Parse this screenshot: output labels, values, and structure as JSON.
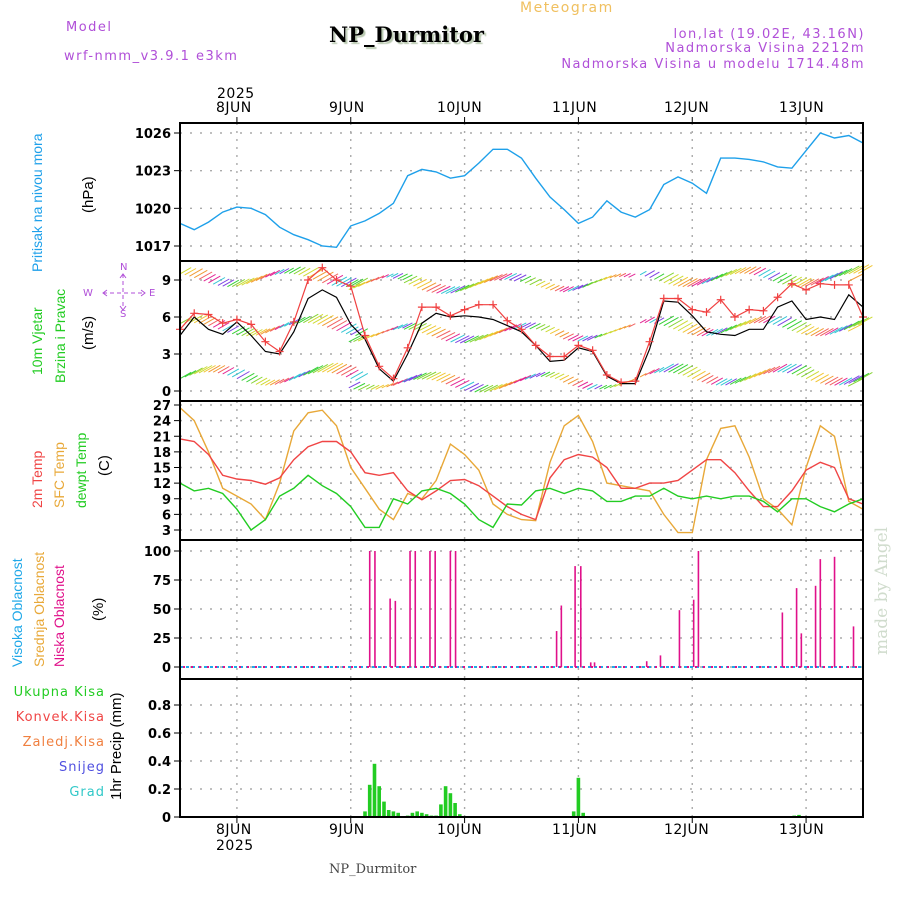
{
  "header": {
    "model_label": "Model",
    "model_name": "wrf-nmm_v3.9.1 e3km",
    "title": "NP_Durmitor",
    "subtitle": "Meteogram",
    "coords": "lon,lat (19.02E, 43.16N)",
    "elevation": "Nadmorska Visina 2212m",
    "model_elevation": "Nadmorska Visina u modelu 1714.48m"
  },
  "footer": {
    "station": "NP_Durmitor",
    "credit": "made by Angel"
  },
  "time_axis": {
    "start": "2025-06-07T12:00",
    "end": "2025-06-13T12:00",
    "year_label": "2025",
    "day_labels": [
      "8JUN",
      "9JUN",
      "10JUN",
      "11JUN",
      "12JUN",
      "13JUN"
    ]
  },
  "colors": {
    "pressure": "#1ea0ea",
    "wind_speed": "#000000",
    "gust": "#f04040",
    "temp2m": "#f04545",
    "sfc_temp": "#e8a838",
    "dewpt": "#22cc22",
    "cloud_high": "#20a8e8",
    "cloud_mid": "#e8a838",
    "cloud_low": "#e0108a",
    "precip_total": "#22cc22",
    "precip_conv": "#f04545",
    "precip_frz": "#f08040",
    "snow": "#5050e0",
    "hail": "#30c8c8",
    "label_purple": "#b04fd8"
  },
  "chart_data": [
    {
      "type": "line",
      "panel": "pressure",
      "ylabel_lines": [
        "Pritisak na nivou mora",
        "(hPa)"
      ],
      "ylim": [
        1016,
        1027
      ],
      "yticks": [
        1017,
        1020,
        1023,
        1026
      ],
      "grid": true,
      "series": [
        {
          "name": "Sea level pressure",
          "x_hours": [
            0,
            3,
            6,
            9,
            12,
            15,
            18,
            21,
            24,
            27,
            30,
            33,
            36,
            39,
            42,
            45,
            48,
            51,
            54,
            57,
            60,
            63,
            66,
            69,
            72,
            75,
            78,
            81,
            84,
            87,
            90,
            93,
            96,
            99,
            102,
            105,
            108,
            111,
            114,
            117,
            120,
            123,
            126,
            129,
            132,
            135,
            138,
            141,
            144
          ],
          "values": [
            1018.8,
            1018.3,
            1018.9,
            1019.7,
            1020.1,
            1020.0,
            1019.5,
            1018.5,
            1017.9,
            1017.5,
            1017.0,
            1016.9,
            1018.6,
            1019.0,
            1019.6,
            1020.4,
            1022.6,
            1023.1,
            1022.9,
            1022.4,
            1022.6,
            1023.6,
            1024.7,
            1024.7,
            1024.0,
            1022.4,
            1020.9,
            1019.9,
            1018.8,
            1019.3,
            1020.6,
            1019.7,
            1019.3,
            1019.9,
            1021.9,
            1022.5,
            1022.0,
            1021.2,
            1024.0,
            1024.0,
            1023.9,
            1023.7,
            1023.3,
            1023.2,
            1024.6,
            1026.0,
            1025.6,
            1025.8,
            1025.2
          ]
        }
      ]
    },
    {
      "type": "line",
      "panel": "wind",
      "ylabel_lines": [
        "10m Vjetar",
        "Brzina i Pravac",
        "(m/s)"
      ],
      "compass": {
        "n": "N",
        "s": "S",
        "e": "E",
        "w": "W"
      },
      "ylim": [
        -0.5,
        10.5
      ],
      "yticks": [
        0,
        3,
        6,
        9
      ],
      "grid": true,
      "series": [
        {
          "name": "Wind speed",
          "x_hours": [
            0,
            3,
            6,
            9,
            12,
            15,
            18,
            21,
            24,
            27,
            30,
            33,
            36,
            39,
            42,
            45,
            48,
            51,
            54,
            57,
            60,
            63,
            66,
            69,
            72,
            75,
            78,
            81,
            84,
            87,
            90,
            93,
            96,
            99,
            102,
            105,
            108,
            111,
            114,
            117,
            120,
            123,
            126,
            129,
            132,
            135,
            138,
            141,
            144
          ],
          "values": [
            4.5,
            6.0,
            5.0,
            4.6,
            5.6,
            4.5,
            3.2,
            3.0,
            4.8,
            7.5,
            8.2,
            7.6,
            5.4,
            4.2,
            1.8,
            0.8,
            3.0,
            5.5,
            6.3,
            6.0,
            6.1,
            6.0,
            5.8,
            5.3,
            4.8,
            3.7,
            2.4,
            2.5,
            3.5,
            3.2,
            1.2,
            0.6,
            0.6,
            3.4,
            7.3,
            7.2,
            6.1,
            4.8,
            4.6,
            4.5,
            5.0,
            5.0,
            6.8,
            7.3,
            5.8,
            6.0,
            5.8,
            7.8,
            6.8
          ]
        },
        {
          "name": "Gust",
          "x_hours": [
            0,
            3,
            6,
            9,
            12,
            15,
            18,
            21,
            24,
            27,
            30,
            33,
            36,
            39,
            42,
            45,
            48,
            51,
            54,
            57,
            60,
            63,
            66,
            69,
            72,
            75,
            78,
            81,
            84,
            87,
            90,
            93,
            96,
            99,
            102,
            105,
            108,
            111,
            114,
            117,
            120,
            123,
            126,
            129,
            132,
            135,
            138,
            141,
            144
          ],
          "values": [
            5.0,
            6.3,
            6.2,
            5.5,
            5.8,
            5.4,
            4.0,
            3.2,
            5.6,
            9.0,
            10.0,
            9.0,
            8.5,
            4.5,
            2.0,
            1.0,
            3.5,
            6.8,
            6.8,
            6.1,
            6.6,
            7.0,
            7.0,
            5.7,
            5.0,
            3.7,
            2.8,
            2.8,
            3.7,
            3.3,
            1.3,
            0.7,
            0.8,
            4.0,
            7.5,
            7.5,
            6.6,
            6.4,
            7.4,
            6.0,
            6.6,
            6.5,
            7.6,
            8.7,
            8.2,
            8.7,
            8.6,
            8.6,
            6.0
          ]
        }
      ],
      "arrow_rows": [
        1,
        5,
        9
      ]
    },
    {
      "type": "line",
      "panel": "temperature",
      "ylabel_lines": [
        "2m Temp",
        "SFC Temp",
        "dewpt Temp",
        "(C)"
      ],
      "ylim": [
        1.5,
        28
      ],
      "yticks": [
        3,
        6,
        9,
        12,
        15,
        18,
        21,
        24,
        27
      ],
      "grid": true,
      "series": [
        {
          "name": "2m Temp",
          "x_hours": [
            0,
            3,
            6,
            9,
            12,
            15,
            18,
            21,
            24,
            27,
            30,
            33,
            36,
            39,
            42,
            45,
            48,
            51,
            54,
            57,
            60,
            63,
            66,
            69,
            72,
            75,
            78,
            81,
            84,
            87,
            90,
            93,
            96,
            99,
            102,
            105,
            108,
            111,
            114,
            117,
            120,
            123,
            126,
            129,
            132,
            135,
            138,
            141,
            144
          ],
          "values": [
            20.5,
            20.0,
            17.5,
            13.5,
            12.8,
            12.5,
            11.8,
            13.0,
            16.5,
            19.0,
            20.0,
            20.0,
            18.0,
            14.0,
            13.5,
            14.0,
            10.5,
            8.8,
            10.5,
            12.5,
            12.7,
            11.5,
            9.5,
            7.5,
            6.0,
            5.0,
            13.0,
            16.5,
            17.5,
            17.0,
            15.0,
            11.0,
            11.0,
            12.0,
            12.0,
            12.5,
            14.5,
            16.5,
            16.5,
            14.0,
            10.5,
            7.5,
            7.5,
            10.5,
            14.5,
            16.0,
            15.0,
            9.0,
            8.0
          ]
        },
        {
          "name": "SFC Temp",
          "x_hours": [
            0,
            3,
            6,
            9,
            12,
            15,
            18,
            21,
            24,
            27,
            30,
            33,
            36,
            39,
            42,
            45,
            48,
            51,
            54,
            57,
            60,
            63,
            66,
            69,
            72,
            75,
            78,
            81,
            84,
            87,
            90,
            93,
            96,
            99,
            102,
            105,
            108,
            111,
            114,
            117,
            120,
            123,
            126,
            129,
            132,
            135,
            138,
            141,
            144
          ],
          "values": [
            26.5,
            24.0,
            18.0,
            11.0,
            9.5,
            8.0,
            5.0,
            12.0,
            22.0,
            25.5,
            26.0,
            23.0,
            15.0,
            11.0,
            7.0,
            5.0,
            10.0,
            9.0,
            12.5,
            19.5,
            17.5,
            14.5,
            8.0,
            6.0,
            5.0,
            4.8,
            16.0,
            23.0,
            25.0,
            20.0,
            12.0,
            11.5,
            11.0,
            10.5,
            6.0,
            2.5,
            2.5,
            16.5,
            22.5,
            23.0,
            17.0,
            9.0,
            7.0,
            4.0,
            15.0,
            23.0,
            21.0,
            8.5,
            7.0
          ]
        },
        {
          "name": "dewpt Temp",
          "x_hours": [
            0,
            3,
            6,
            9,
            12,
            15,
            18,
            21,
            24,
            27,
            30,
            33,
            36,
            39,
            42,
            45,
            48,
            51,
            54,
            57,
            60,
            63,
            66,
            69,
            72,
            75,
            78,
            81,
            84,
            87,
            90,
            93,
            96,
            99,
            102,
            105,
            108,
            111,
            114,
            117,
            120,
            123,
            126,
            129,
            132,
            135,
            138,
            141,
            144
          ],
          "values": [
            12.0,
            10.5,
            11.0,
            10.0,
            7.0,
            3.0,
            5.0,
            9.5,
            11.0,
            13.5,
            11.5,
            10.0,
            7.5,
            3.5,
            3.5,
            9.0,
            8.0,
            10.5,
            11.0,
            10.0,
            8.0,
            5.0,
            3.5,
            8.0,
            7.8,
            10.5,
            11.0,
            10.0,
            11.0,
            10.5,
            8.5,
            8.5,
            9.5,
            9.5,
            11.0,
            9.5,
            9.0,
            9.5,
            9.0,
            9.5,
            9.5,
            8.5,
            6.5,
            9.0,
            9.0,
            7.5,
            6.5,
            8.0,
            9.0
          ]
        }
      ]
    },
    {
      "type": "bar",
      "panel": "cloud",
      "ylabel_lines": [
        "Visoka Oblacnost",
        "Srednja Oblacnost",
        "Niska Oblacnost",
        "(%)"
      ],
      "ylim": [
        -5,
        105
      ],
      "yticks": [
        0,
        25,
        50,
        75,
        100
      ],
      "grid": true,
      "series": [
        {
          "name": "Niska Oblacnost (low)",
          "x_hours": [
            40,
            41,
            45,
            46,
            50,
            51,
            55,
            56,
            60,
            61,
            82,
            83,
            86,
            87,
            88,
            89,
            113,
            115,
            119,
            122,
            123,
            141,
            123.9,
            124.5,
            126,
            126.5,
            128,
            129,
            130,
            132
          ],
          "values": [
            100,
            100,
            59,
            57,
            100,
            100,
            100,
            100,
            100,
            100,
            31,
            53,
            87,
            87,
            4,
            4,
            5,
            10,
            49,
            58,
            100,
            0,
            0,
            0,
            0,
            0,
            0,
            0,
            0,
            0
          ]
        },
        {
          "name": "Visoka Oblacnost (high)",
          "x_hours": [],
          "values": []
        },
        {
          "name": "Srednja Oblacnost (mid)",
          "x_hours": [],
          "values": []
        }
      ],
      "low_bars": [
        {
          "h": 40.0,
          "v": 100
        },
        {
          "h": 41.1,
          "v": 100
        },
        {
          "h": 44.3,
          "v": 59
        },
        {
          "h": 45.4,
          "v": 57
        },
        {
          "h": 48.5,
          "v": 100
        },
        {
          "h": 49.6,
          "v": 100
        },
        {
          "h": 52.7,
          "v": 100
        },
        {
          "h": 53.8,
          "v": 100
        },
        {
          "h": 57.0,
          "v": 100
        },
        {
          "h": 58.1,
          "v": 100
        },
        {
          "h": 79.4,
          "v": 31
        },
        {
          "h": 80.4,
          "v": 53
        },
        {
          "h": 83.3,
          "v": 87
        },
        {
          "h": 84.5,
          "v": 87
        },
        {
          "h": 86.6,
          "v": 4
        },
        {
          "h": 87.4,
          "v": 4
        },
        {
          "h": 98.4,
          "v": 5
        },
        {
          "h": 101.3,
          "v": 10
        },
        {
          "h": 105.3,
          "v": 49
        },
        {
          "h": 108.3,
          "v": 58
        },
        {
          "h": 109.3,
          "v": 100
        },
        {
          "h": 127.0,
          "v": 47
        },
        {
          "h": 130.0,
          "v": 68
        },
        {
          "h": 131.0,
          "v": 29
        },
        {
          "h": 134.0,
          "v": 70
        },
        {
          "h": 135.0,
          "v": 93
        },
        {
          "h": 138.0,
          "v": 95
        },
        {
          "h": 142.0,
          "v": 35
        }
      ]
    },
    {
      "type": "bar",
      "panel": "precipitation",
      "ylabel_lines": [
        "1hr Precip (mm)"
      ],
      "legend": [
        "Ukupna Kisa",
        "Konvek.Kisa",
        "Zaledj.Kisa",
        "Snijeg",
        "Grad"
      ],
      "ylim": [
        0,
        0.95
      ],
      "yticks": [
        0,
        0.2,
        0.4,
        0.6,
        0.8
      ],
      "grid": true,
      "series": [
        {
          "name": "Ukupna Kisa",
          "bars": [
            {
              "h": 39.0,
              "v": 0.04
            },
            {
              "h": 40.0,
              "v": 0.23
            },
            {
              "h": 41.0,
              "v": 0.38
            },
            {
              "h": 42.0,
              "v": 0.22
            },
            {
              "h": 43.0,
              "v": 0.11
            },
            {
              "h": 44.0,
              "v": 0.05
            },
            {
              "h": 45.0,
              "v": 0.04
            },
            {
              "h": 46.0,
              "v": 0.03
            },
            {
              "h": 48.0,
              "v": 0.01
            },
            {
              "h": 49.0,
              "v": 0.03
            },
            {
              "h": 50.0,
              "v": 0.04
            },
            {
              "h": 51.0,
              "v": 0.03
            },
            {
              "h": 52.0,
              "v": 0.02
            },
            {
              "h": 53.0,
              "v": 0.01
            },
            {
              "h": 54.0,
              "v": 0.01
            },
            {
              "h": 55.0,
              "v": 0.09
            },
            {
              "h": 56.0,
              "v": 0.22
            },
            {
              "h": 57.0,
              "v": 0.17
            },
            {
              "h": 58.0,
              "v": 0.1
            },
            {
              "h": 59.0,
              "v": 0.02
            },
            {
              "h": 83.0,
              "v": 0.04
            },
            {
              "h": 84.0,
              "v": 0.28
            },
            {
              "h": 85.0,
              "v": 0.03
            },
            {
              "h": 129.5,
              "v": 0.01
            },
            {
              "h": 130.5,
              "v": 0.015
            }
          ]
        }
      ]
    }
  ]
}
